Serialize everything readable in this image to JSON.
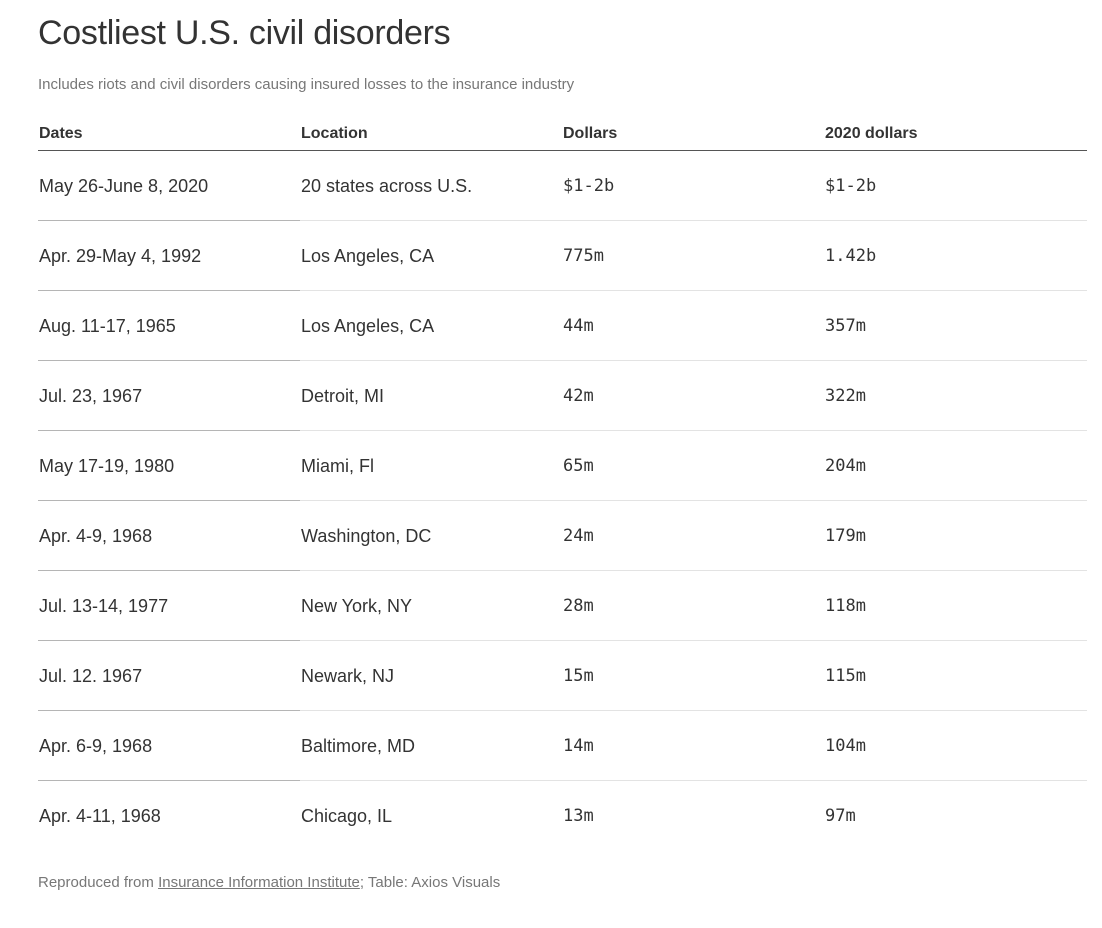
{
  "title": "Costliest U.S. civil disorders",
  "subtitle": "Includes riots and civil disorders causing insured losses to the insurance industry",
  "footer": {
    "prefix": "Reproduced from ",
    "link_text": "Insurance Information Institute",
    "suffix": "; Table: Axios Visuals"
  },
  "chart_data": {
    "type": "table",
    "columns": [
      "Dates",
      "Location",
      "Dollars",
      "2020 dollars"
    ],
    "rows": [
      [
        "May 26-June 8, 2020",
        "20 states across U.S.",
        "$1-2b",
        "$1-2b"
      ],
      [
        "Apr. 29-May 4, 1992",
        "Los Angeles, CA",
        "775m",
        "1.42b"
      ],
      [
        "Aug. 11-17, 1965",
        "Los Angeles, CA",
        "44m",
        "357m"
      ],
      [
        "Jul. 23, 1967",
        "Detroit, MI",
        "42m",
        "322m"
      ],
      [
        "May 17-19, 1980",
        "Miami, Fl",
        "65m",
        "204m"
      ],
      [
        "Apr. 4-9, 1968",
        "Washington, DC",
        "24m",
        "179m"
      ],
      [
        "Jul. 13-14, 1977",
        "New York, NY",
        "28m",
        "118m"
      ],
      [
        "Jul. 12. 1967",
        "Newark, NJ",
        "15m",
        "115m"
      ],
      [
        "Apr. 6-9, 1968",
        "Baltimore, MD",
        "14m",
        "104m"
      ],
      [
        "Apr. 4-11, 1968",
        "Chicago, IL",
        "13m",
        "97m"
      ]
    ]
  }
}
